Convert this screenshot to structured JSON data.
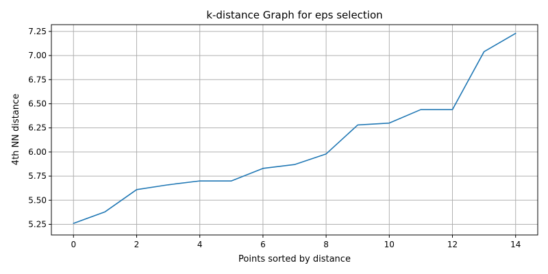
{
  "chart_data": {
    "type": "line",
    "title": "k-distance Graph for eps selection",
    "xlabel": "Points sorted by distance",
    "ylabel": "4th NN distance",
    "x": [
      0,
      1,
      2,
      3,
      4,
      5,
      6,
      7,
      8,
      9,
      10,
      11,
      12,
      13,
      14
    ],
    "series": [
      {
        "values": [
          5.26,
          5.38,
          5.61,
          5.66,
          5.7,
          5.7,
          5.83,
          5.87,
          5.98,
          6.28,
          6.3,
          6.44,
          6.44,
          7.04,
          7.23
        ],
        "color": "#1f77b4"
      }
    ],
    "xlim": [
      -0.7,
      14.7
    ],
    "ylim": [
      5.14,
      7.32
    ],
    "xticks": [
      0,
      2,
      4,
      6,
      8,
      10,
      12,
      14
    ],
    "xtick_labels": [
      "0",
      "2",
      "4",
      "6",
      "8",
      "10",
      "12",
      "14"
    ],
    "yticks": [
      5.25,
      5.5,
      5.75,
      6.0,
      6.25,
      6.5,
      6.75,
      7.0,
      7.25
    ],
    "ytick_labels": [
      "5.25",
      "5.50",
      "5.75",
      "6.00",
      "6.25",
      "6.50",
      "6.75",
      "7.00",
      "7.25"
    ],
    "grid": true,
    "grid_color": "#b0b0b0"
  }
}
